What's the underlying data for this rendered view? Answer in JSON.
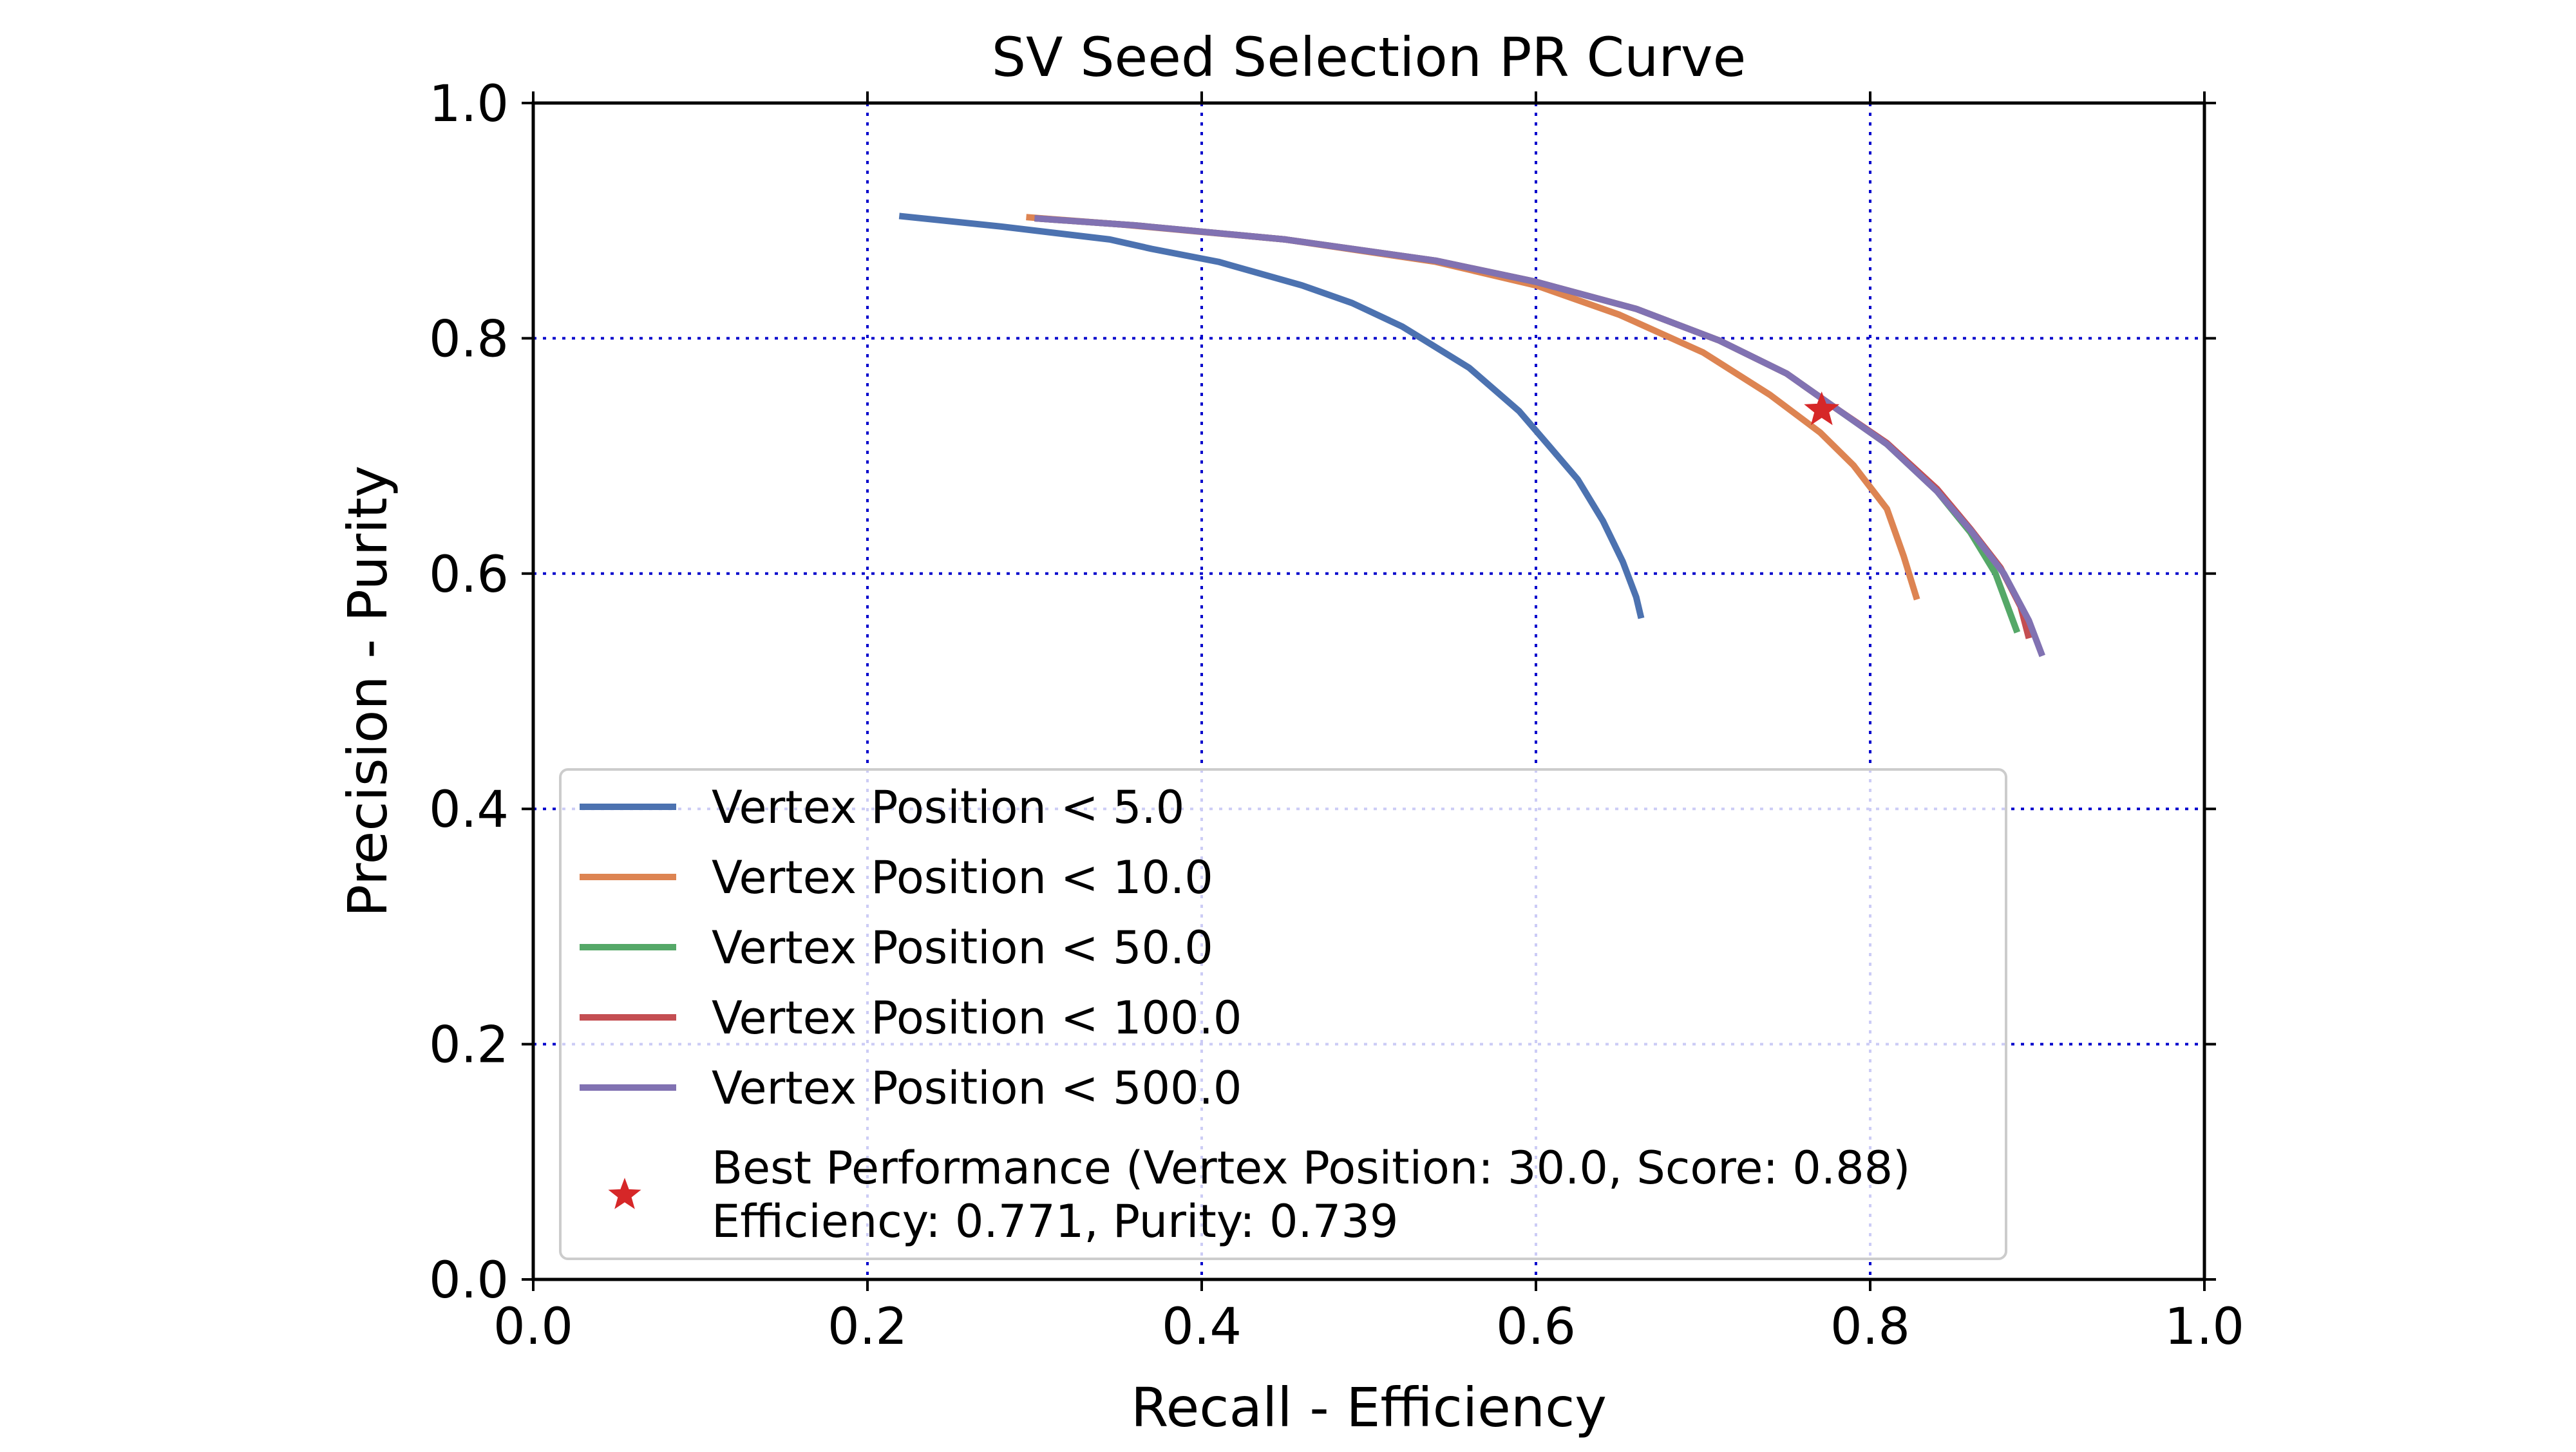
{
  "chart_data": {
    "type": "line",
    "title": "SV Seed Selection PR Curve",
    "xlabel": "Recall - Efficiency",
    "ylabel": "Precision - Purity",
    "xlim": [
      0.0,
      1.0
    ],
    "ylim": [
      0.0,
      1.0
    ],
    "x_ticks": [
      "0.0",
      "0.2",
      "0.4",
      "0.6",
      "0.8",
      "1.0"
    ],
    "y_ticks": [
      "0.0",
      "0.2",
      "0.4",
      "0.6",
      "0.8",
      "1.0"
    ],
    "x_tick_values": [
      0.0,
      0.2,
      0.4,
      0.6,
      0.8,
      1.0
    ],
    "y_tick_values": [
      0.0,
      0.2,
      0.4,
      0.6,
      0.8,
      1.0
    ],
    "grid": true,
    "grid_color": "#0000cc",
    "legend_position": "lower-left",
    "series": [
      {
        "name": "Vertex Position < 5.0",
        "color": "#4c72b0",
        "x": [
          0.219,
          0.28,
          0.345,
          0.37,
          0.41,
          0.46,
          0.49,
          0.52,
          0.56,
          0.59,
          0.61,
          0.625,
          0.64,
          0.652,
          0.66,
          0.663
        ],
        "y": [
          0.904,
          0.895,
          0.884,
          0.876,
          0.865,
          0.845,
          0.83,
          0.81,
          0.775,
          0.738,
          0.705,
          0.68,
          0.645,
          0.61,
          0.58,
          0.562
        ]
      },
      {
        "name": "Vertex Position < 10.0",
        "color": "#dd8452",
        "x": [
          0.295,
          0.35,
          0.45,
          0.54,
          0.6,
          0.65,
          0.7,
          0.74,
          0.77,
          0.79,
          0.81,
          0.82,
          0.828
        ],
        "y": [
          0.903,
          0.897,
          0.884,
          0.865,
          0.845,
          0.82,
          0.788,
          0.752,
          0.72,
          0.692,
          0.655,
          0.615,
          0.578
        ]
      },
      {
        "name": "Vertex Position < 50.0",
        "color": "#55a868",
        "x": [
          0.3,
          0.36,
          0.45,
          0.54,
          0.6,
          0.66,
          0.71,
          0.75,
          0.78,
          0.81,
          0.84,
          0.86,
          0.875,
          0.888
        ],
        "y": [
          0.902,
          0.896,
          0.884,
          0.866,
          0.848,
          0.825,
          0.798,
          0.77,
          0.74,
          0.71,
          0.67,
          0.635,
          0.6,
          0.55
        ]
      },
      {
        "name": "Vertex Position < 100.0",
        "color": "#c44e52",
        "x": [
          0.3,
          0.36,
          0.45,
          0.54,
          0.6,
          0.66,
          0.71,
          0.75,
          0.78,
          0.81,
          0.84,
          0.86,
          0.878,
          0.89,
          0.895
        ],
        "y": [
          0.902,
          0.896,
          0.884,
          0.866,
          0.848,
          0.825,
          0.798,
          0.77,
          0.74,
          0.711,
          0.672,
          0.638,
          0.605,
          0.572,
          0.545
        ]
      },
      {
        "name": "Vertex Position < 500.0",
        "color": "#8172b2",
        "x": [
          0.3,
          0.36,
          0.45,
          0.54,
          0.6,
          0.66,
          0.71,
          0.75,
          0.78,
          0.81,
          0.84,
          0.86,
          0.88,
          0.895,
          0.903
        ],
        "y": [
          0.902,
          0.896,
          0.884,
          0.866,
          0.848,
          0.825,
          0.798,
          0.77,
          0.74,
          0.71,
          0.67,
          0.637,
          0.6,
          0.56,
          0.53
        ]
      }
    ],
    "best_point": {
      "x": 0.771,
      "y": 0.739,
      "color": "#d62728",
      "marker": "star",
      "label_line1": "Best Performance (Vertex Position: 30.0, Score: 0.88)",
      "label_line2": "Efficiency: 0.771, Purity: 0.739"
    }
  }
}
